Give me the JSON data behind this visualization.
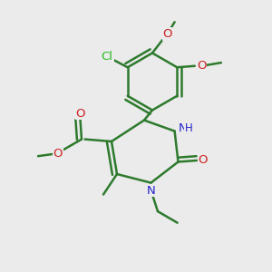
{
  "background_color": "#ebebeb",
  "bond_color": "#2d7a2d",
  "bond_width": 1.8,
  "atom_colors": {
    "C": "#2d7a2d",
    "Cl": "#22bb22",
    "N": "#2222cc",
    "O": "#cc2222",
    "H": "#2222cc"
  },
  "figsize": [
    3.0,
    3.0
  ],
  "dpi": 100
}
